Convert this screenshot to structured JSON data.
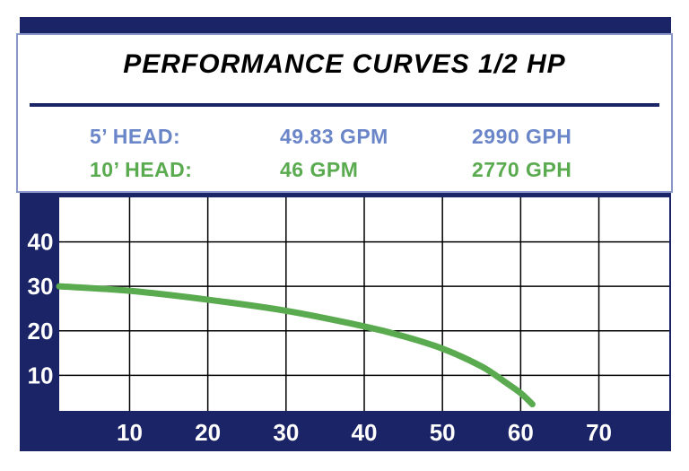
{
  "chart_data": {
    "type": "line",
    "title": "PERFORMANCE CURVES 1/2 HP",
    "xlabel": "",
    "ylabel": "",
    "x_ticks": [
      10,
      20,
      30,
      40,
      50,
      60,
      70
    ],
    "y_ticks": [
      10,
      20,
      30,
      40
    ],
    "xlim": [
      1,
      79
    ],
    "ylim": [
      2,
      50
    ],
    "grid": true,
    "series": [
      {
        "color": "#5aaa4f",
        "points": [
          [
            1,
            30
          ],
          [
            10,
            29
          ],
          [
            20,
            27
          ],
          [
            30,
            24.5
          ],
          [
            40,
            21
          ],
          [
            45,
            18.8
          ],
          [
            50,
            16
          ],
          [
            55,
            12
          ],
          [
            58,
            8.5
          ],
          [
            60,
            6
          ],
          [
            61.5,
            3.5
          ]
        ]
      }
    ]
  },
  "specs": [
    {
      "label": "5’ HEAD:",
      "gpm": "49.83 GPM",
      "gph": "2990 GPH",
      "color": "#6a85c8"
    },
    {
      "label": "10’ HEAD:",
      "gpm": "46 GPM",
      "gph": "2770 GPH",
      "color": "#5aaa4f"
    }
  ],
  "colors": {
    "frame": "#1a2466",
    "grid": "#000000",
    "tick_text": "#ffffff"
  }
}
